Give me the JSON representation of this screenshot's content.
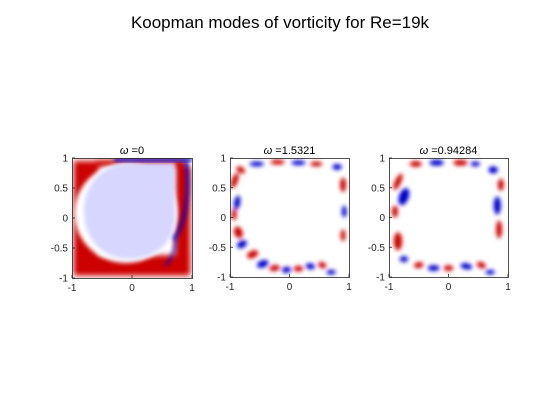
{
  "figure": {
    "suptitle": "Koopman modes of vorticity for Re=19k"
  },
  "colors": {
    "positive": "#cc0000",
    "negative": "#0000cc",
    "mean_fill": "#d6d6ff",
    "background": "#ffffff"
  },
  "chart_data": [
    {
      "type": "heatmap",
      "title_symbol": "ω",
      "title_value": " =0",
      "xlim": [
        -1,
        1
      ],
      "ylim": [
        -1,
        1
      ],
      "xticks": [
        "-1",
        "0",
        "1"
      ],
      "yticks": [
        "1",
        "0.5",
        "0",
        "-0.5",
        "-1"
      ],
      "colormap": "blue-white-red",
      "pattern": "primary vortex (uniform negative vorticity) with positive shear layer along left, bottom and right walls"
    },
    {
      "type": "heatmap",
      "title_symbol": "ω",
      "title_value": " =1.5321",
      "xlim": [
        -1,
        1
      ],
      "ylim": [
        -1,
        1
      ],
      "xticks": [
        "-1",
        "0",
        "1"
      ],
      "yticks": [
        "1",
        "0.5",
        "0",
        "-0.5",
        "-1"
      ],
      "colormap": "blue-white-red",
      "pattern": "alternating positive/negative lobes along cavity walls, near-zero interior"
    },
    {
      "type": "heatmap",
      "title_symbol": "ω",
      "title_value": " =0.94284",
      "xlim": [
        -1,
        1
      ],
      "ylim": [
        -1,
        1
      ],
      "xticks": [
        "-1",
        "0",
        "1"
      ],
      "yticks": [
        "1",
        "0.5",
        "0",
        "-0.5",
        "-1"
      ],
      "colormap": "blue-white-red",
      "pattern": "alternating positive/negative lobes along cavity walls, near-zero interior"
    }
  ]
}
